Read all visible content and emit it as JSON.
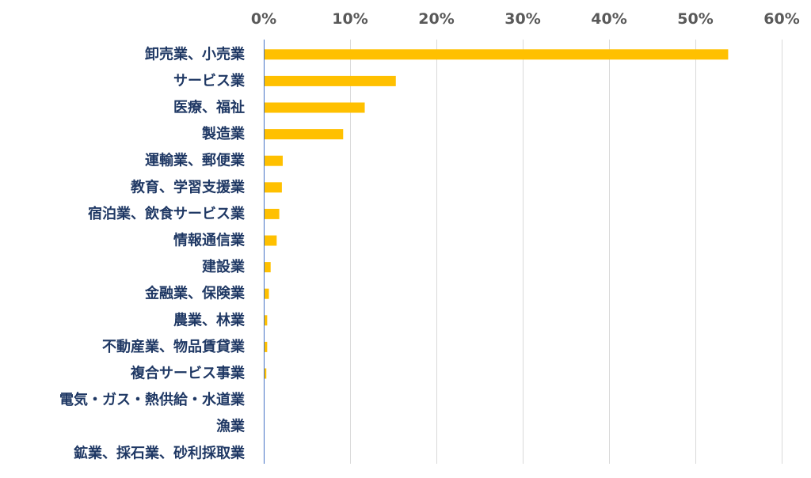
{
  "chart_data": {
    "type": "bar",
    "orientation": "horizontal",
    "categories": [
      "卸売業、小売業",
      "サービス業",
      "医療、福祉",
      "製造業",
      "運輸業、郵便業",
      "教育、学習支援業",
      "宿泊業、飲食サービス業",
      "情報通信業",
      "建設業",
      "金融業、保険業",
      "農業、林業",
      "不動産業、物品賃貸業",
      "複合サービス事業",
      "電気・ガス・熱供給・水道業",
      "漁業",
      "鉱業、採石業、砂利採取業"
    ],
    "values": [
      53.8,
      15.3,
      11.7,
      9.2,
      2.2,
      2.1,
      1.8,
      1.5,
      0.8,
      0.6,
      0.4,
      0.4,
      0.3,
      0,
      0,
      0
    ],
    "xlim": [
      0,
      60
    ],
    "x_ticks": [
      0,
      10,
      20,
      30,
      40,
      50,
      60
    ],
    "x_tick_labels": [
      "0%",
      "10%",
      "20%",
      "30%",
      "40%",
      "50%",
      "60%"
    ],
    "x_axis_position": "top",
    "grid": true,
    "legend": "none",
    "title": "",
    "xlabel": "",
    "ylabel": "",
    "bar_color": "#ffc000",
    "grid_color": "#d9d9d9",
    "axis_color": "#4472c4",
    "tick_label_color": "#595959",
    "category_label_color": "#1f3864"
  }
}
